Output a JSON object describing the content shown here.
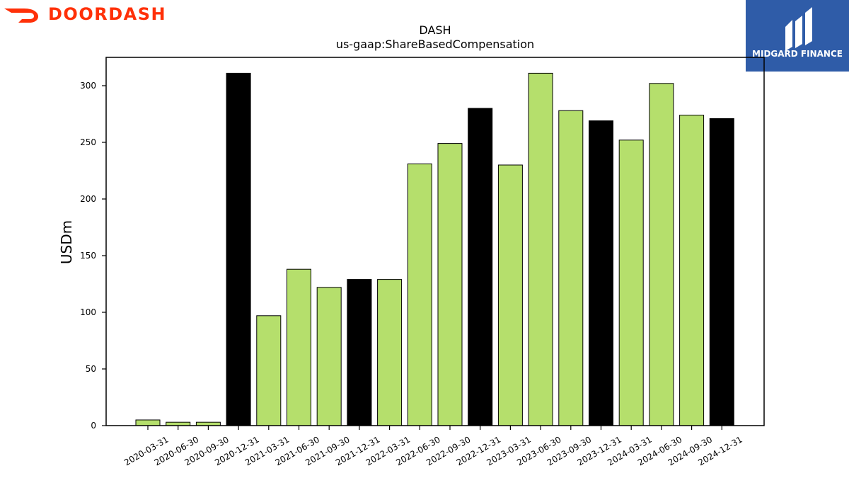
{
  "branding": {
    "left_logo_text": "DOORDASH",
    "left_logo_color": "#ff3008",
    "right_logo_text": "MIDGARD FINANCE",
    "right_logo_bg": "#2f5ca8"
  },
  "colors": {
    "quarter_bar": "#b5df6c",
    "year_end_bar": "#000000",
    "bar_edge": "#000000"
  },
  "chart_data": {
    "type": "bar",
    "title": "DASH",
    "subtitle": "us-gaap:ShareBasedCompensation",
    "xlabel": "",
    "ylabel": "USDm",
    "ylim": [
      0,
      325
    ],
    "yticks": [
      0,
      50,
      100,
      150,
      200,
      250,
      300
    ],
    "grid": false,
    "legend": "none",
    "categories": [
      "2020-03-31",
      "2020-06-30",
      "2020-09-30",
      "2020-12-31",
      "2021-03-31",
      "2021-06-30",
      "2021-09-30",
      "2021-12-31",
      "2022-03-31",
      "2022-06-30",
      "2022-09-30",
      "2022-12-31",
      "2023-03-31",
      "2023-06-30",
      "2023-09-30",
      "2023-12-31",
      "2024-03-31",
      "2024-06-30",
      "2024-09-30",
      "2024-12-31"
    ],
    "values": [
      5,
      3,
      3,
      311,
      97,
      138,
      122,
      129,
      129,
      231,
      249,
      280,
      230,
      311,
      278,
      269,
      252,
      302,
      274,
      271
    ],
    "year_end": [
      false,
      false,
      false,
      true,
      false,
      false,
      false,
      true,
      false,
      false,
      false,
      true,
      false,
      false,
      false,
      true,
      false,
      false,
      false,
      true
    ]
  }
}
